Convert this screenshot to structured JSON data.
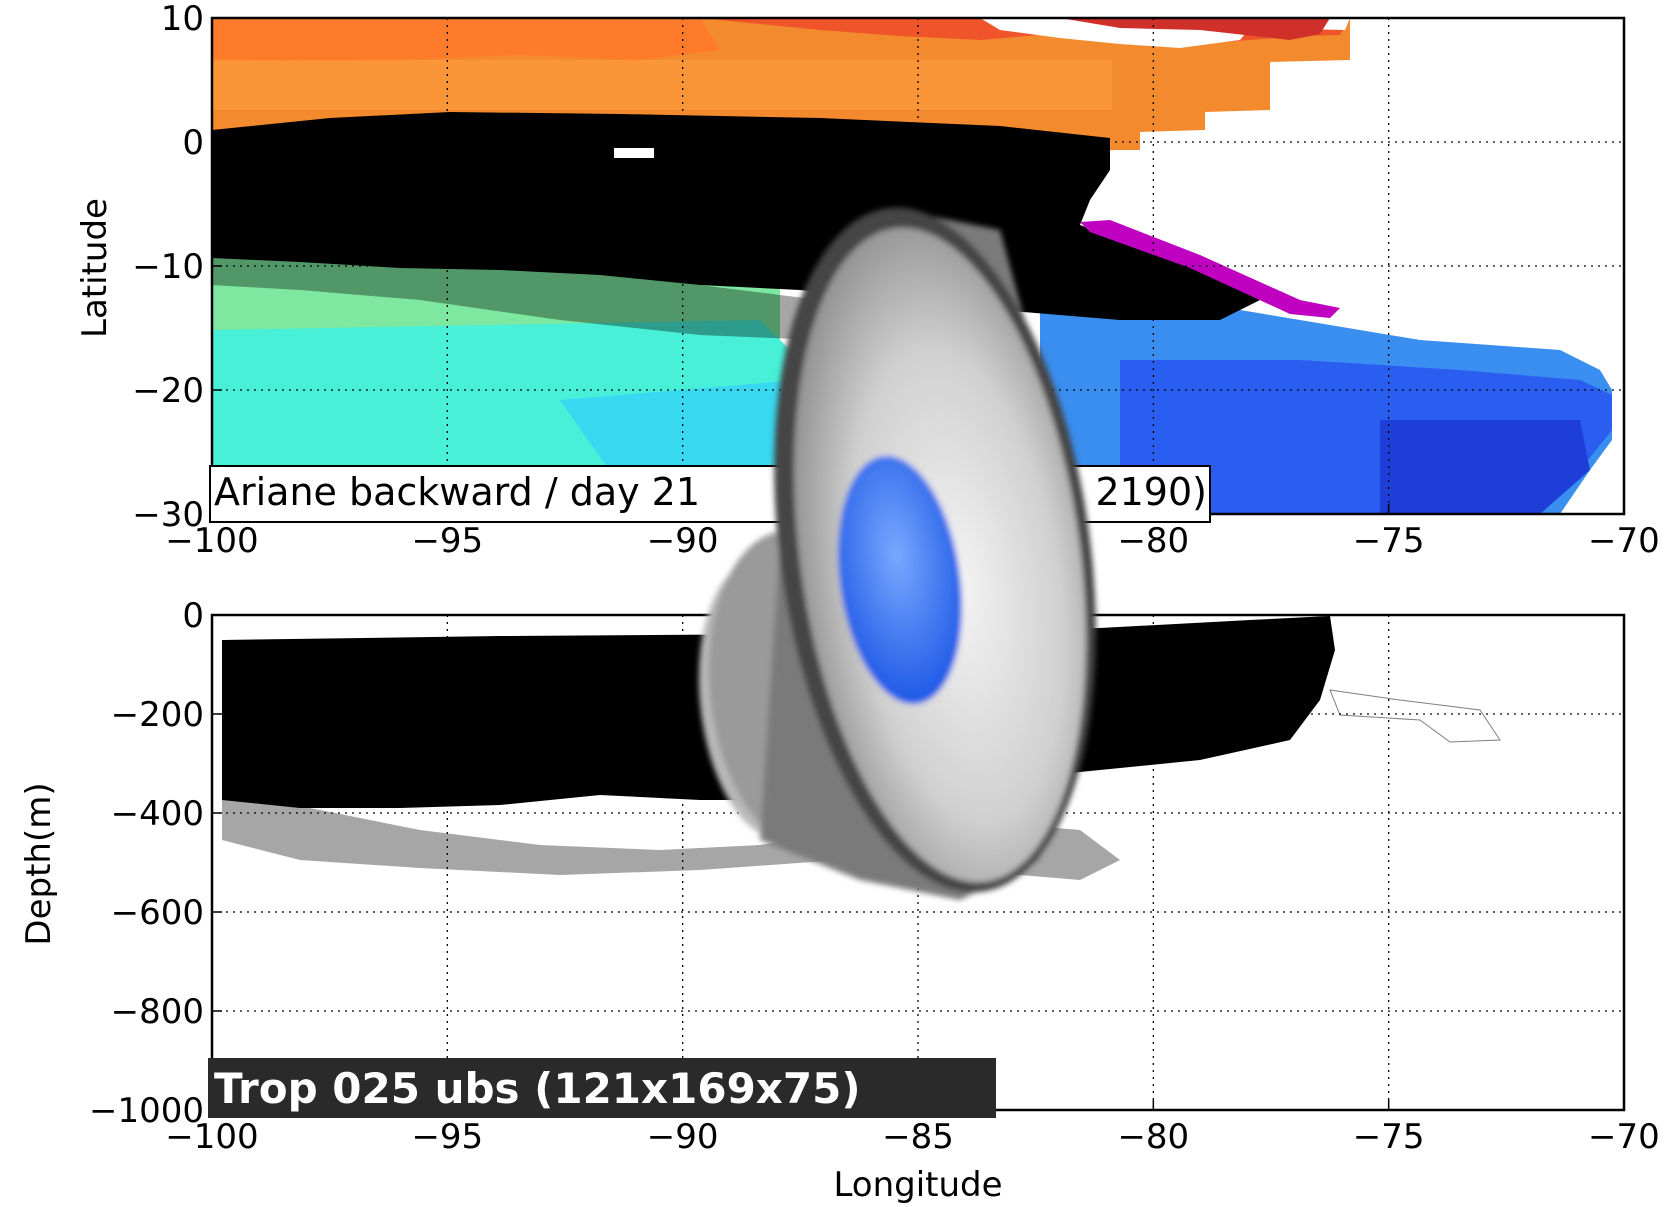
{
  "top_title_fragment": "",
  "chart_data": [
    {
      "type": "contour map with trajectories",
      "xlabel": "",
      "ylabel": "Latitude",
      "xlim": [
        -100,
        -70
      ],
      "ylim": [
        -30,
        10
      ],
      "xticks": [
        "−100",
        "−95",
        "−90",
        "−85",
        "−80",
        "−75",
        "−70"
      ],
      "yticks": [
        "10",
        "0",
        "−10",
        "−20",
        "−30"
      ],
      "grid": true,
      "annotation": "Ariane backward / day 21",
      "annotation_tail": "2190)",
      "colors": {
        "warm": "#f08a2a",
        "red": "#e03020",
        "green": "#7de07a",
        "cyan": "#40e8d0",
        "blue": "#2060f0",
        "magenta": "#c000c0",
        "track": "#000000"
      }
    },
    {
      "type": "depth section with trajectories",
      "xlabel": "Longitude",
      "ylabel": "Depth(m)",
      "xlim": [
        -100,
        -70
      ],
      "ylim": [
        -1000,
        0
      ],
      "xticks": [
        "−100",
        "−95",
        "−90",
        "−85",
        "−80",
        "−75",
        "−70"
      ],
      "yticks": [
        "0",
        "−200",
        "−400",
        "−600",
        "−800",
        "−1000"
      ],
      "grid": true,
      "annotation": "Trop 025 ubs (121x169x75)"
    }
  ],
  "overlay": {
    "icon": "speaker-icon"
  }
}
